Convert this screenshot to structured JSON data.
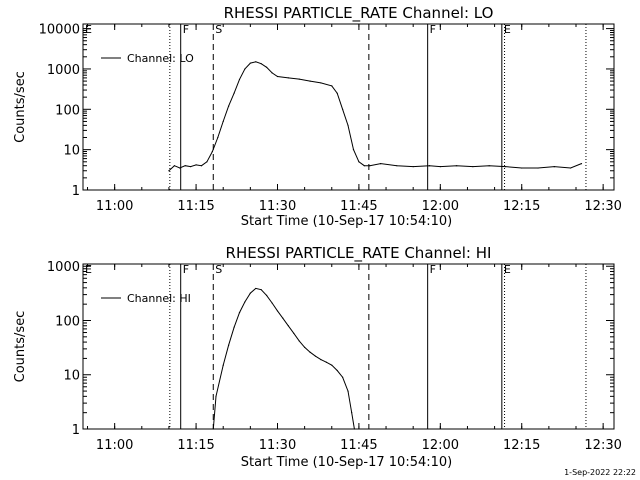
{
  "footer": "1-Sep-2022 22:22",
  "chart_data": [
    {
      "type": "line",
      "title": "RHESSI PARTICLE_RATE Channel: LO",
      "xlabel": "Start Time (10-Sep-17 10:54:10)",
      "ylabel": "Counts/sec",
      "yscale": "log",
      "ylim": [
        1,
        13000
      ],
      "xlim": [
        "10:54:10",
        "12:32:00"
      ],
      "xticks": [
        "11:00",
        "11:15",
        "11:30",
        "11:45",
        "12:00",
        "12:15",
        "12:30"
      ],
      "yticks": [
        "1",
        "10",
        "100",
        "1000",
        "10000"
      ],
      "grid": false,
      "legend_position": "top-left",
      "series": [
        {
          "name": "Channel: LO",
          "x": [
            "11:10:00",
            "11:11:00",
            "11:12:00",
            "11:13:00",
            "11:14:00",
            "11:15:00",
            "11:16:00",
            "11:17:00",
            "11:18:00",
            "11:19:00",
            "11:20:00",
            "11:21:00",
            "11:22:00",
            "11:23:00",
            "11:24:00",
            "11:25:00",
            "11:26:00",
            "11:27:00",
            "11:28:00",
            "11:29:00",
            "11:30:00",
            "11:32:00",
            "11:34:00",
            "11:36:00",
            "11:38:00",
            "11:40:00",
            "11:41:00",
            "11:42:00",
            "11:43:00",
            "11:44:00",
            "11:45:00",
            "11:46:00",
            "11:47:00",
            "11:49:00",
            "11:52:00",
            "11:55:00",
            "11:58:00",
            "12:00:00",
            "12:03:00",
            "12:06:00",
            "12:09:00",
            "12:12:00",
            "12:15:00",
            "12:18:00",
            "12:21:00",
            "12:24:00",
            "12:26:00"
          ],
          "y": [
            3,
            4,
            3.5,
            4,
            3.8,
            4.2,
            4,
            5,
            9,
            20,
            50,
            120,
            250,
            550,
            1000,
            1400,
            1500,
            1350,
            1100,
            800,
            650,
            600,
            560,
            500,
            450,
            380,
            250,
            100,
            40,
            10,
            5,
            4,
            4,
            4.5,
            4,
            3.8,
            4,
            3.8,
            4,
            3.8,
            4,
            3.8,
            3.5,
            3.5,
            3.8,
            3.5,
            4.5
          ]
        }
      ],
      "markers": [
        {
          "label": "F",
          "time": "11:12:10",
          "style": "solid"
        },
        {
          "label": "S",
          "time": "11:18:10",
          "style": "dashed"
        },
        {
          "label": "F",
          "time": "11:57:40",
          "style": "solid"
        },
        {
          "label": "E",
          "time": "12:11:20",
          "style": "solid"
        },
        {
          "label": "",
          "time": "11:10:10",
          "style": "dotted"
        },
        {
          "label": "",
          "time": "11:46:50",
          "style": "dashed"
        },
        {
          "label": "",
          "time": "12:11:50",
          "style": "dotted"
        },
        {
          "label": "",
          "time": "12:26:50",
          "style": "dotted"
        },
        {
          "label": "E",
          "time": "10:54:10",
          "style": "none"
        }
      ]
    },
    {
      "type": "line",
      "title": "RHESSI PARTICLE_RATE Channel: HI",
      "xlabel": "Start Time (10-Sep-17 10:54:10)",
      "ylabel": "Counts/sec",
      "yscale": "log",
      "ylim": [
        1,
        1100
      ],
      "xlim": [
        "10:54:10",
        "12:32:00"
      ],
      "xticks": [
        "11:00",
        "11:15",
        "11:30",
        "11:45",
        "12:00",
        "12:15",
        "12:30"
      ],
      "yticks": [
        "1",
        "10",
        "100",
        "1000"
      ],
      "grid": false,
      "legend_position": "top-left",
      "series": [
        {
          "name": "Channel: HI",
          "x": [
            "11:18:10",
            "11:18:40",
            "11:20:00",
            "11:21:00",
            "11:22:00",
            "11:23:00",
            "11:24:00",
            "11:25:00",
            "11:26:00",
            "11:27:00",
            "11:28:00",
            "11:29:00",
            "11:30:00",
            "11:31:00",
            "11:32:00",
            "11:33:00",
            "11:34:00",
            "11:35:00",
            "11:36:00",
            "11:37:00",
            "11:38:00",
            "11:39:00",
            "11:40:00",
            "11:41:00",
            "11:42:00",
            "11:43:00",
            "11:43:40",
            "11:44:10"
          ],
          "y": [
            1,
            4,
            15,
            35,
            75,
            140,
            220,
            320,
            390,
            370,
            290,
            210,
            150,
            110,
            80,
            58,
            42,
            32,
            26,
            22,
            19,
            17,
            15,
            12,
            9,
            5,
            2,
            1
          ]
        }
      ],
      "markers": [
        {
          "label": "F",
          "time": "11:12:10",
          "style": "solid"
        },
        {
          "label": "S",
          "time": "11:18:10",
          "style": "dashed"
        },
        {
          "label": "F",
          "time": "11:57:40",
          "style": "solid"
        },
        {
          "label": "E",
          "time": "12:11:20",
          "style": "solid"
        },
        {
          "label": "",
          "time": "11:10:10",
          "style": "dotted"
        },
        {
          "label": "",
          "time": "11:46:50",
          "style": "dashed"
        },
        {
          "label": "",
          "time": "12:11:50",
          "style": "dotted"
        },
        {
          "label": "",
          "time": "12:26:50",
          "style": "dotted"
        },
        {
          "label": "E",
          "time": "10:54:10",
          "style": "none"
        }
      ]
    }
  ]
}
